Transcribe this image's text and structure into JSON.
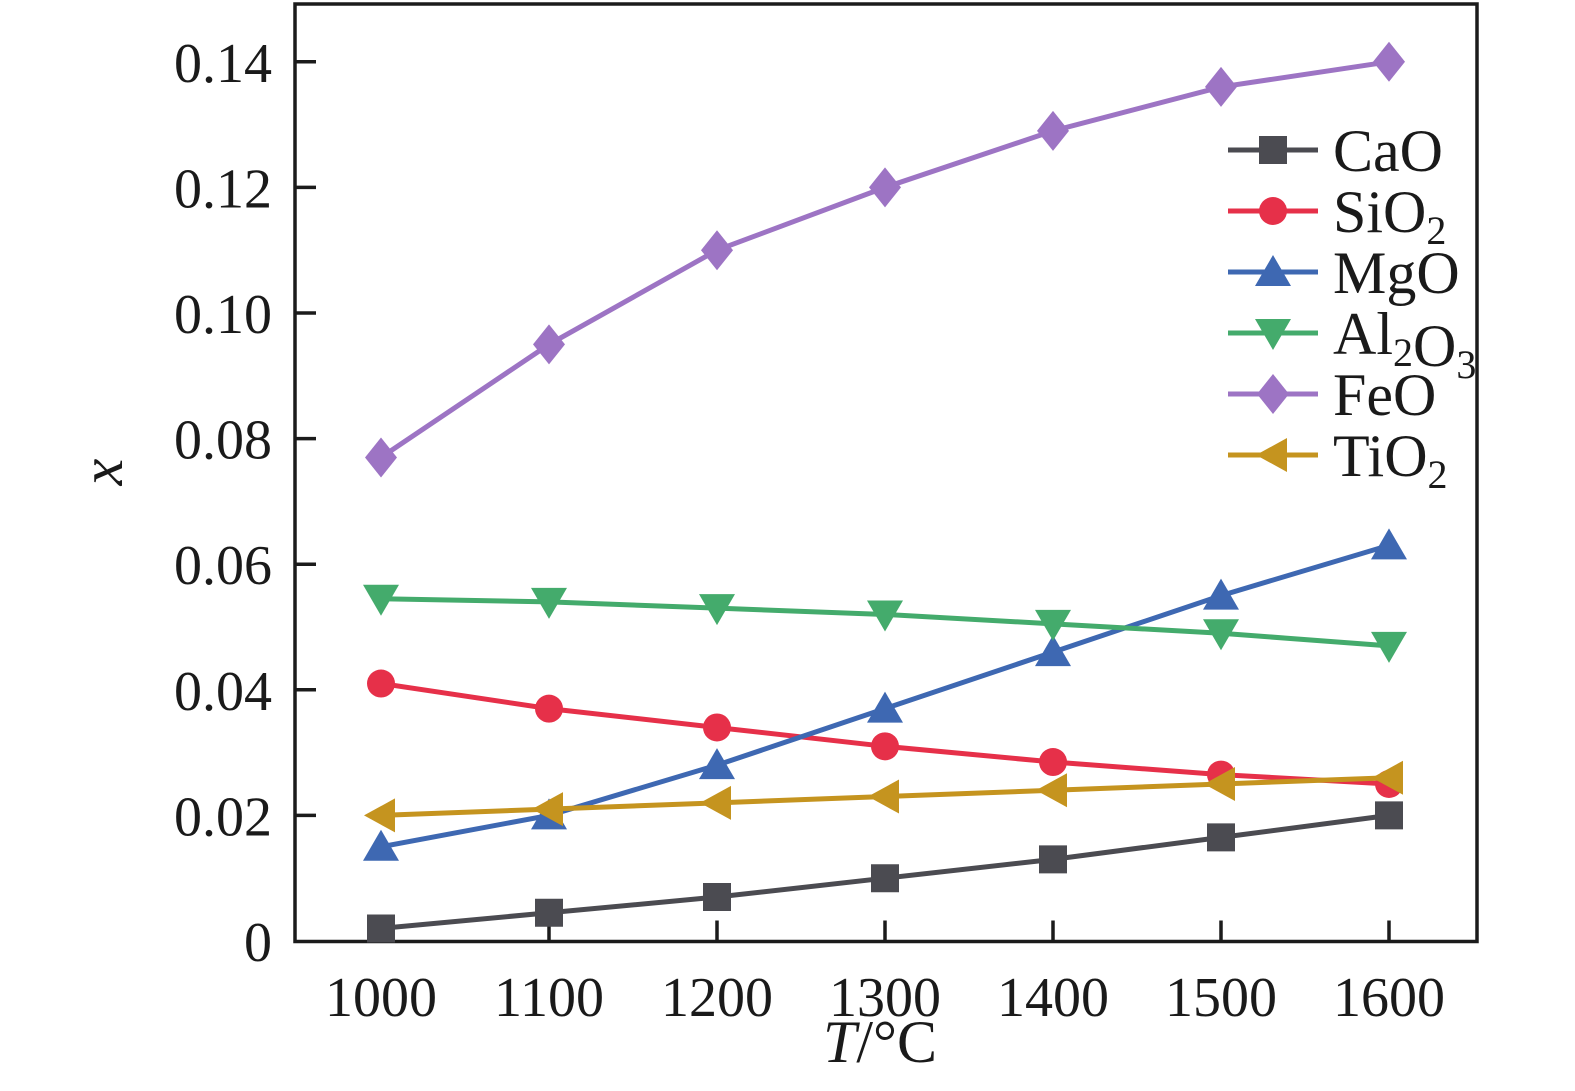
{
  "figure": {
    "background": "#ffffff",
    "axis_color": "#1b1b1b",
    "text_color": "#1a1a1a"
  },
  "chart_data": {
    "type": "line",
    "title": "",
    "xlabel_italic": "T",
    "xlabel_rest": "/°C",
    "ylabel": "x",
    "x": [
      1000,
      1100,
      1200,
      1300,
      1400,
      1500,
      1600
    ],
    "xtick_labels": [
      "1000",
      "1100",
      "1200",
      "1300",
      "1400",
      "1500",
      "1600"
    ],
    "yticks": [
      0,
      0.02,
      0.04,
      0.06,
      0.08,
      0.1,
      0.12,
      0.14
    ],
    "ytick_labels": [
      "0",
      "0.02",
      "0.04",
      "0.06",
      "0.08",
      "0.10",
      "0.12",
      "0.14"
    ],
    "xlim": [
      949,
      1652
    ],
    "ylim": [
      0,
      0.15
    ],
    "grid": false,
    "legend_position": "upper-right-inside",
    "series": [
      {
        "id": "cao",
        "label_parts": [
          {
            "t": "CaO",
            "sub": false
          }
        ],
        "marker": "square",
        "color": "#4b4b51",
        "values": [
          0.002,
          0.0045,
          0.007,
          0.01,
          0.013,
          0.0165,
          0.02
        ]
      },
      {
        "id": "sio2",
        "label_parts": [
          {
            "t": "SiO",
            "sub": false
          },
          {
            "t": "2",
            "sub": true
          }
        ],
        "marker": "circle",
        "color": "#e63049",
        "values": [
          0.041,
          0.037,
          0.034,
          0.031,
          0.0285,
          0.0265,
          0.025
        ]
      },
      {
        "id": "mgo",
        "label_parts": [
          {
            "t": "MgO",
            "sub": false
          }
        ],
        "marker": "triangle-up",
        "color": "#3e68b2",
        "values": [
          0.015,
          0.02,
          0.028,
          0.037,
          0.046,
          0.055,
          0.063
        ]
      },
      {
        "id": "al2o3",
        "label_parts": [
          {
            "t": "Al",
            "sub": false
          },
          {
            "t": "2",
            "sub": true
          },
          {
            "t": "O",
            "sub": false
          },
          {
            "t": "3",
            "sub": true
          }
        ],
        "marker": "triangle-down",
        "color": "#44ab6c",
        "values": [
          0.0545,
          0.054,
          0.053,
          0.052,
          0.0505,
          0.049,
          0.047
        ]
      },
      {
        "id": "feo",
        "label_parts": [
          {
            "t": "FeO",
            "sub": false
          }
        ],
        "marker": "diamond",
        "color": "#9d74c4",
        "values": [
          0.077,
          0.095,
          0.11,
          0.12,
          0.129,
          0.136,
          0.14
        ]
      },
      {
        "id": "tio2",
        "label_parts": [
          {
            "t": "TiO",
            "sub": false
          },
          {
            "t": "2",
            "sub": true
          }
        ],
        "marker": "triangle-left",
        "color": "#c5941f",
        "values": [
          0.02,
          0.021,
          0.022,
          0.023,
          0.024,
          0.025,
          0.026
        ]
      }
    ]
  }
}
